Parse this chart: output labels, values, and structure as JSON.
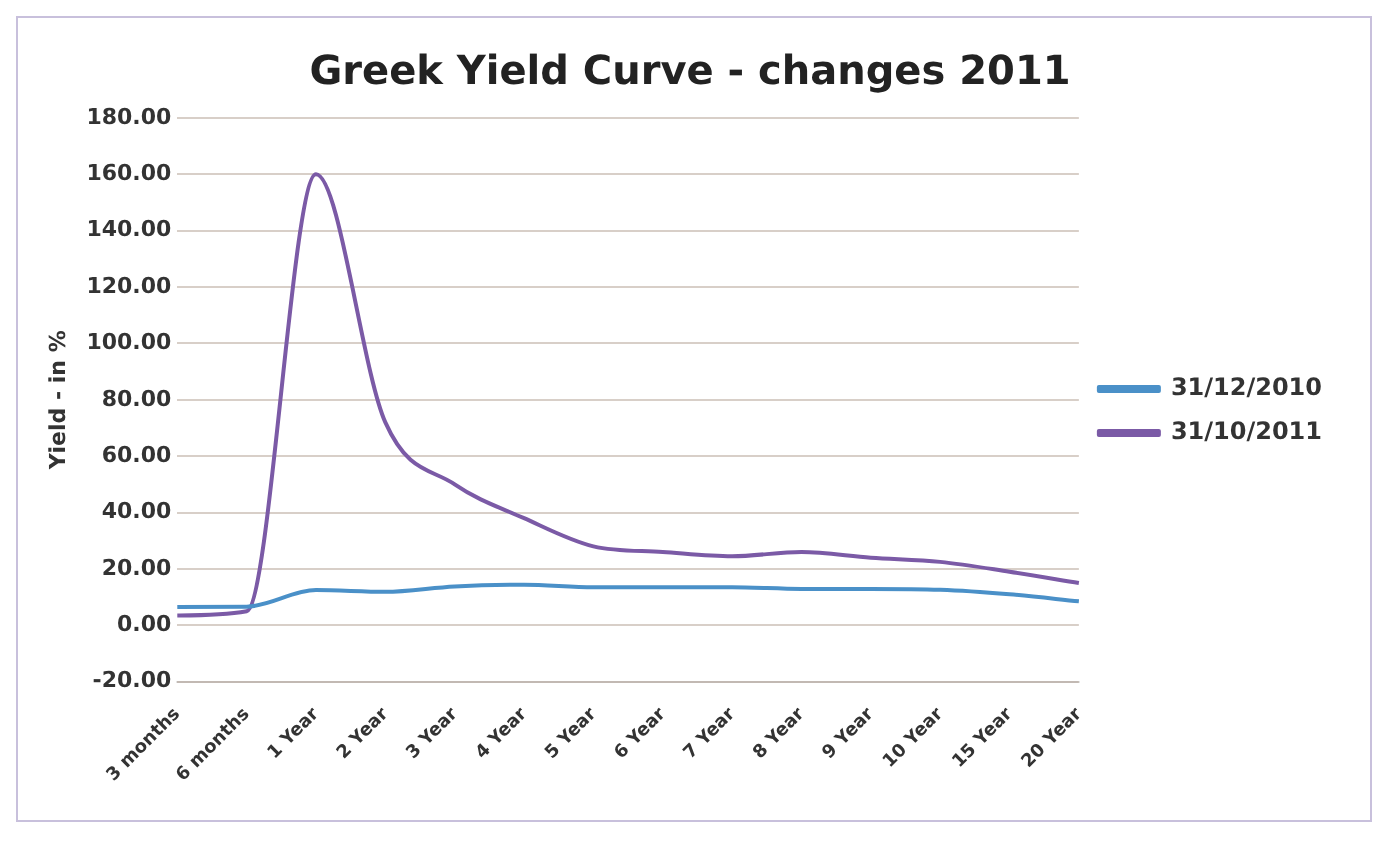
{
  "chart_data": {
    "type": "line",
    "title": "Greek Yield Curve - changes 2011",
    "ylabel": "Yield - in %",
    "categories": [
      "3 months",
      "6 months",
      "1 Year",
      "2 Year",
      "3 Year",
      "4 Year",
      "5 Year",
      "6 Year",
      "7 Year",
      "8 Year",
      "9 Year",
      "10 Year",
      "15 Year",
      "20 Year"
    ],
    "series": [
      {
        "name": "31/12/2010",
        "color": "#4a90c8",
        "values": [
          6.5,
          6.6,
          12.5,
          11.9,
          13.8,
          14.4,
          13.5,
          13.5,
          13.5,
          12.9,
          12.9,
          12.6,
          11,
          8.5
        ]
      },
      {
        "name": "31/10/2011",
        "color": "#7b5aa6",
        "values": [
          3.5,
          5,
          160,
          72,
          50,
          38,
          28,
          26,
          24.5,
          26,
          24,
          22.5,
          19,
          15
        ]
      }
    ],
    "ylim": [
      -20,
      180
    ],
    "yticks": [
      {
        "value": -20,
        "label": "-20.00"
      },
      {
        "value": 0,
        "label": "0.00"
      },
      {
        "value": 20,
        "label": "20.00"
      },
      {
        "value": 40,
        "label": "40.00"
      },
      {
        "value": 60,
        "label": "60.00"
      },
      {
        "value": 80,
        "label": "80.00"
      },
      {
        "value": 100,
        "label": "100.00"
      },
      {
        "value": 120,
        "label": "120.00"
      },
      {
        "value": 140,
        "label": "140.00"
      },
      {
        "value": 160,
        "label": "160.00"
      },
      {
        "value": 180,
        "label": "180.00"
      }
    ],
    "grid": "y",
    "legend": "right",
    "marker": "none",
    "line_style": "solid"
  }
}
